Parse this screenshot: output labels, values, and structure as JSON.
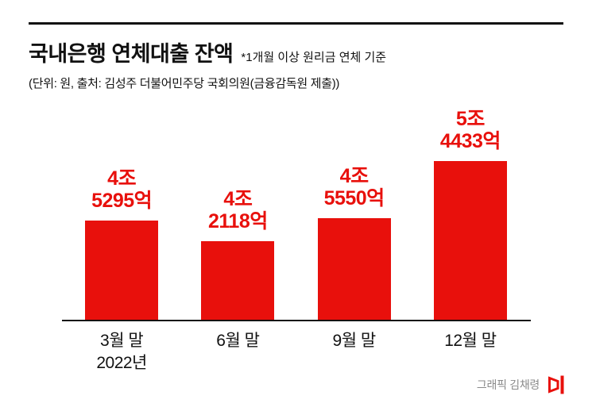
{
  "header": {
    "title": "국내은행 연체대출 잔액",
    "subtitle": "*1개월 이상 원리금 연체 기준",
    "source": "(단위: 원, 출처: 김성주 더불어민주당 국회의원(금융감독원 제출))"
  },
  "chart_data": {
    "type": "bar",
    "title": "국내은행 연체대출 잔액",
    "note": "*1개월 이상 원리금 연체 기준",
    "unit": "원 (labels in 조/억)",
    "categories": [
      "3월 말",
      "6월 말",
      "9월 말",
      "12월 말"
    ],
    "category_subs": [
      "2022년",
      "",
      "",
      ""
    ],
    "values": [
      45295,
      42118,
      45550,
      54433
    ],
    "value_labels": [
      [
        "4조",
        "5295억"
      ],
      [
        "4조",
        "2118억"
      ],
      [
        "4조",
        "5550억"
      ],
      [
        "5조",
        "4433억"
      ]
    ],
    "bar_color": "#e8100c",
    "label_color": "#e8100c",
    "axis_color": "#111111",
    "legend": "none",
    "grid": false
  },
  "footer": {
    "credit": "그래픽 김채령"
  }
}
